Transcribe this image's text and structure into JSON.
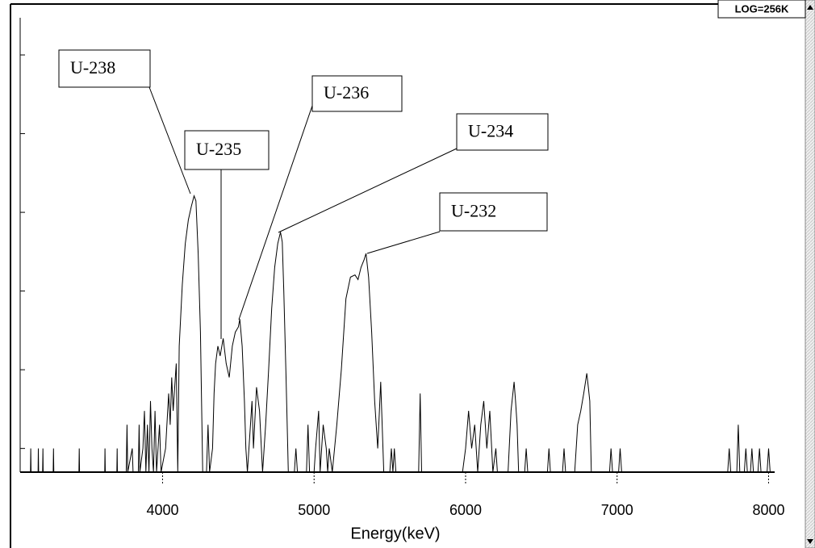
{
  "chart_data": {
    "type": "line",
    "scale_label": "LOG=256K",
    "x_label": "Energy(keV)",
    "annotations": [
      "U-238",
      "U-235",
      "U-236",
      "U-234",
      "U-232"
    ],
    "color": "#000000",
    "log_y": true,
    "xlim": [
      3060,
      8040
    ],
    "xticks": [
      4000,
      5000,
      6000,
      7000,
      8000
    ],
    "ylim": [
      0.5,
      350000
    ],
    "yticks": [
      1,
      10,
      100,
      1000,
      10000,
      100000
    ],
    "x": [
      3100,
      3128,
      3130,
      3132,
      3178,
      3180,
      3182,
      3208,
      3210,
      3212,
      3278,
      3280,
      3282,
      3448,
      3450,
      3452,
      3618,
      3620,
      3622,
      3698,
      3700,
      3702,
      3760,
      3765,
      3770,
      3800,
      3805,
      3840,
      3845,
      3850,
      3870,
      3880,
      3890,
      3900,
      3910,
      3920,
      3930,
      3940,
      3950,
      3960,
      3980,
      3990,
      4020,
      4040,
      4050,
      4060,
      4070,
      4090,
      4100,
      4110,
      4130,
      4150,
      4170,
      4190,
      4208,
      4220,
      4235,
      4250,
      4265,
      4290,
      4300,
      4310,
      4330,
      4340,
      4350,
      4365,
      4380,
      4400,
      4420,
      4440,
      4460,
      4480,
      4500,
      4510,
      4525,
      4540,
      4550,
      4560,
      4580,
      4590,
      4600,
      4620,
      4640,
      4660,
      4680,
      4700,
      4720,
      4740,
      4760,
      4778,
      4790,
      4800,
      4815,
      4830,
      4870,
      4880,
      4890,
      4950,
      4960,
      4970,
      5000,
      5010,
      5030,
      5040,
      5060,
      5080,
      5090,
      5100,
      5120,
      5150,
      5180,
      5210,
      5240,
      5270,
      5290,
      5310,
      5330,
      5343,
      5360,
      5380,
      5400,
      5420,
      5440,
      5460,
      5500,
      5510,
      5520,
      5530,
      5540,
      5690,
      5700,
      5710,
      5720,
      5980,
      6000,
      6020,
      6040,
      6060,
      6080,
      6100,
      6120,
      6140,
      6160,
      6180,
      6200,
      6210,
      6280,
      6300,
      6320,
      6330,
      6340,
      6350,
      6390,
      6400,
      6410,
      6540,
      6550,
      6560,
      6640,
      6650,
      6660,
      6720,
      6740,
      6760,
      6780,
      6800,
      6810,
      6820,
      6830,
      6850,
      6950,
      6960,
      6970,
      7010,
      7020,
      7030,
      7730,
      7740,
      7750,
      7790,
      7800,
      7810,
      7840,
      7850,
      7860,
      7880,
      7890,
      7900,
      7930,
      7940,
      7950,
      7990,
      8000,
      8010,
      8040
    ],
    "values": [
      0,
      0,
      1,
      0,
      0,
      1,
      0,
      0,
      1,
      0,
      0,
      1,
      0,
      0,
      1,
      0,
      0,
      1,
      0,
      0,
      1,
      0,
      0,
      2,
      0,
      1,
      0,
      0,
      2,
      0,
      1,
      3,
      0,
      2,
      0,
      4,
      1,
      0,
      3,
      0,
      2,
      0,
      1,
      5,
      2,
      8,
      3,
      12,
      0,
      20,
      120,
      400,
      800,
      1200,
      1620,
      1400,
      300,
      30,
      0,
      0,
      2,
      0,
      1,
      5,
      12,
      20,
      15,
      25,
      12,
      8,
      20,
      30,
      35,
      44,
      20,
      4,
      1,
      0,
      2,
      4,
      1,
      6,
      3,
      0,
      2,
      10,
      60,
      200,
      400,
      560,
      420,
      100,
      8,
      0,
      0,
      1,
      0,
      0,
      2,
      0,
      0,
      1,
      3,
      0,
      2,
      1,
      0,
      1,
      0,
      2,
      10,
      80,
      150,
      160,
      140,
      200,
      250,
      300,
      150,
      30,
      4,
      1,
      7,
      0,
      0,
      1,
      0,
      1,
      0,
      0,
      5,
      0,
      0,
      0,
      1,
      3,
      1,
      2,
      0,
      2,
      4,
      1,
      3,
      0,
      1,
      0,
      0,
      3,
      7,
      4,
      2,
      0,
      0,
      1,
      0,
      0,
      1,
      0,
      0,
      1,
      0,
      0,
      2,
      3,
      5,
      9,
      6,
      4,
      0,
      0,
      0,
      1,
      0,
      0,
      1,
      0,
      0,
      1,
      0,
      0,
      2,
      0,
      0,
      1,
      0,
      0,
      1,
      0,
      0,
      1,
      0,
      0,
      1,
      0,
      0
    ]
  }
}
